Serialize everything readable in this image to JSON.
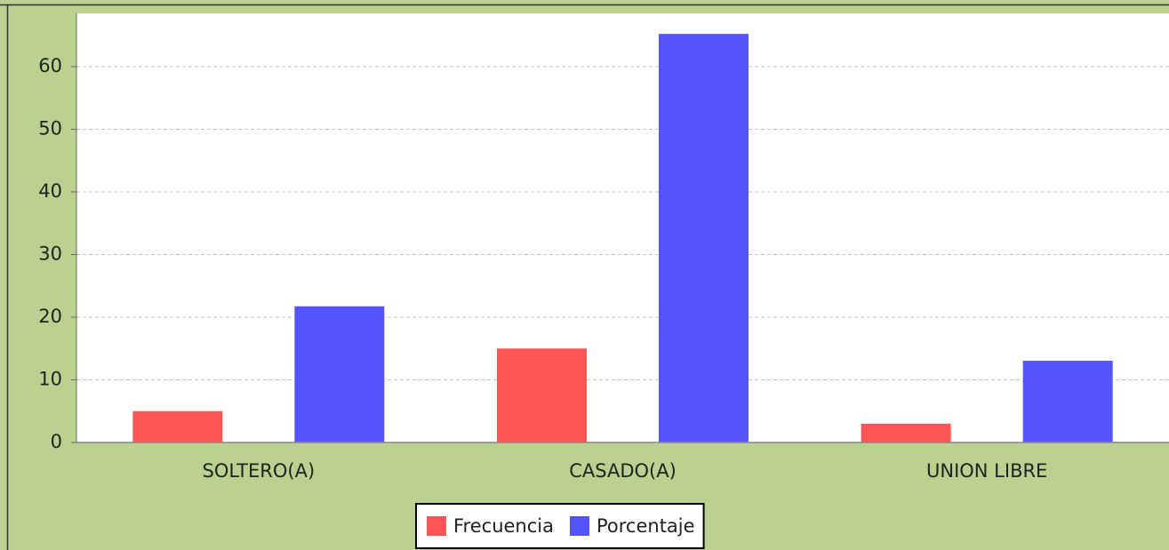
{
  "chart_data": {
    "type": "bar",
    "categories": [
      "SOLTERO(A)",
      "CASADO(A)",
      "UNION LIBRE"
    ],
    "series": [
      {
        "name": "Frecuencia",
        "color": "#ff5555",
        "values": [
          5,
          15,
          3
        ]
      },
      {
        "name": "Porcentaje",
        "color": "#5555ff",
        "values": [
          21.74,
          65.22,
          13.04
        ]
      }
    ],
    "ylim": [
      0,
      68.5
    ],
    "yticks": [
      0,
      10,
      20,
      30,
      40,
      50,
      60
    ],
    "grid": true,
    "legend": "bottom"
  }
}
